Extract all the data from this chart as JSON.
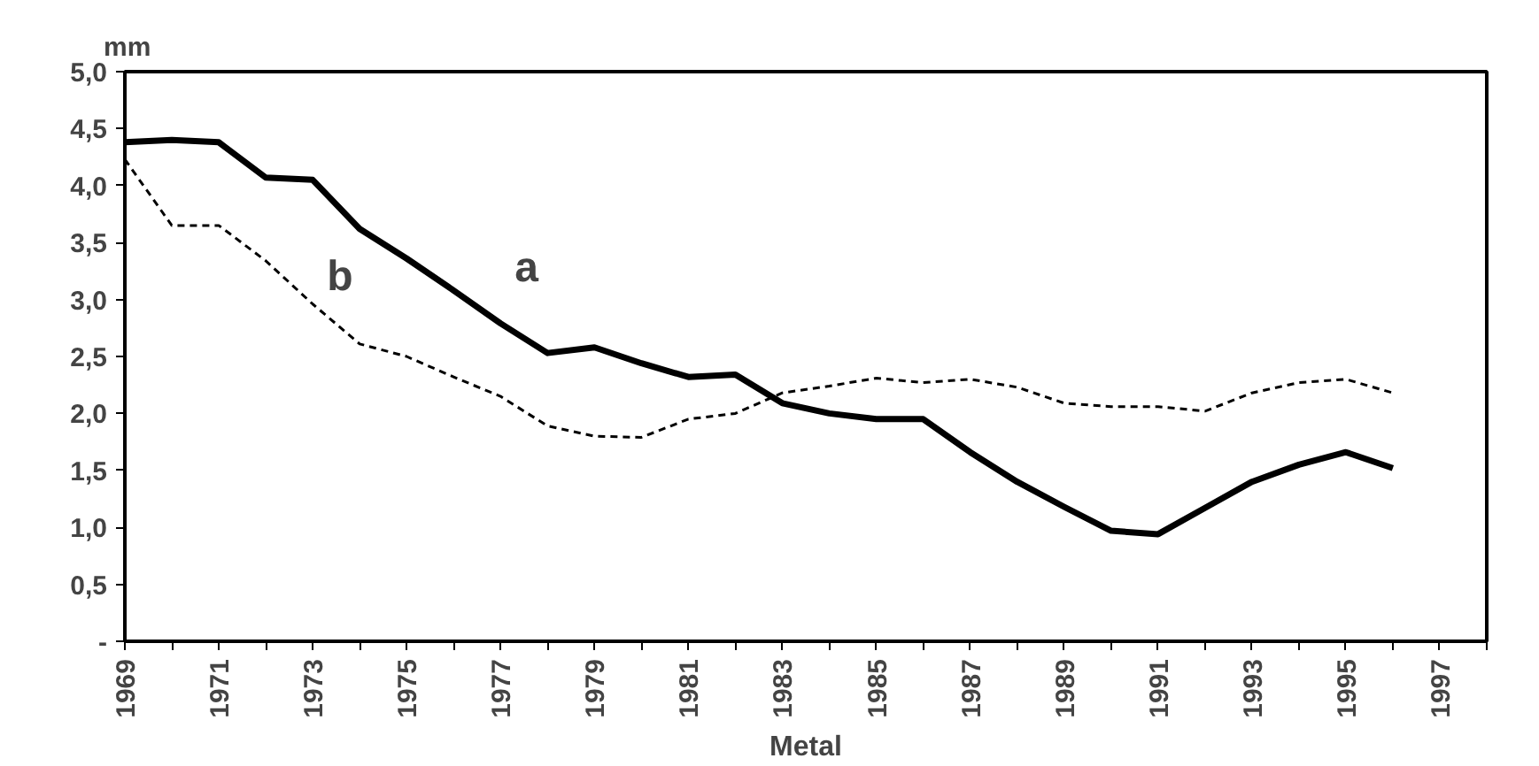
{
  "chart_data": {
    "type": "line",
    "xlabel": "Metal",
    "ylabel": "mm",
    "x": [
      1969,
      1970,
      1971,
      1972,
      1973,
      1974,
      1975,
      1976,
      1977,
      1978,
      1979,
      1980,
      1981,
      1982,
      1983,
      1984,
      1985,
      1986,
      1987,
      1988,
      1989,
      1990,
      1991,
      1992,
      1993,
      1994,
      1995,
      1996
    ],
    "series": [
      {
        "name": "a",
        "color": "#000000",
        "line_style": "solid",
        "values": [
          4.38,
          4.4,
          4.38,
          4.07,
          4.05,
          3.62,
          3.36,
          3.08,
          2.79,
          2.53,
          2.58,
          2.44,
          2.32,
          2.34,
          2.09,
          2.0,
          1.95,
          1.95,
          1.66,
          1.4,
          1.18,
          0.97,
          0.94,
          1.17,
          1.4,
          1.55,
          1.66,
          1.52
        ]
      },
      {
        "name": "b",
        "color": "#000000",
        "line_style": "dashed",
        "values": [
          4.23,
          3.65,
          3.65,
          3.34,
          2.96,
          2.61,
          2.5,
          2.32,
          2.15,
          1.89,
          1.8,
          1.79,
          1.95,
          2.0,
          2.18,
          2.24,
          2.31,
          2.27,
          2.3,
          2.23,
          2.09,
          2.06,
          2.06,
          2.02,
          2.18,
          2.27,
          2.3,
          2.18
        ]
      }
    ],
    "xlim": [
      1969,
      1998
    ],
    "xticks": [
      1969,
      {
        "value": 1970,
        "label": null
      },
      1971,
      {
        "value": 1972,
        "label": null
      },
      1973,
      {
        "value": 1974,
        "label": null
      },
      1975,
      {
        "value": 1976,
        "label": null
      },
      1977,
      {
        "value": 1978,
        "label": null
      },
      1979,
      {
        "value": 1980,
        "label": null
      },
      1981,
      {
        "value": 1982,
        "label": null
      },
      1983,
      {
        "value": 1984,
        "label": null
      },
      1985,
      {
        "value": 1986,
        "label": null
      },
      1987,
      {
        "value": 1988,
        "label": null
      },
      1989,
      {
        "value": 1990,
        "label": null
      },
      1991,
      {
        "value": 1992,
        "label": null
      },
      1993,
      {
        "value": 1994,
        "label": null
      },
      1995,
      {
        "value": 1996,
        "label": null
      },
      1997,
      {
        "value": 1998,
        "label": null
      }
    ],
    "ylim": [
      0,
      5
    ],
    "yticks": [
      {
        "value": 0,
        "label": "-"
      },
      {
        "value": 0.5,
        "label": "0,5"
      },
      {
        "value": 1,
        "label": "1,0"
      },
      {
        "value": 1.5,
        "label": "1,5"
      },
      {
        "value": 2,
        "label": "2,0"
      },
      {
        "value": 2.5,
        "label": "2,5"
      },
      {
        "value": 3,
        "label": "3,0"
      },
      {
        "value": 3.5,
        "label": "3,5"
      },
      {
        "value": 4,
        "label": "4,0"
      },
      {
        "value": 4.5,
        "label": "4,5"
      },
      {
        "value": 5,
        "label": "5,0"
      }
    ],
    "grid": false
  }
}
